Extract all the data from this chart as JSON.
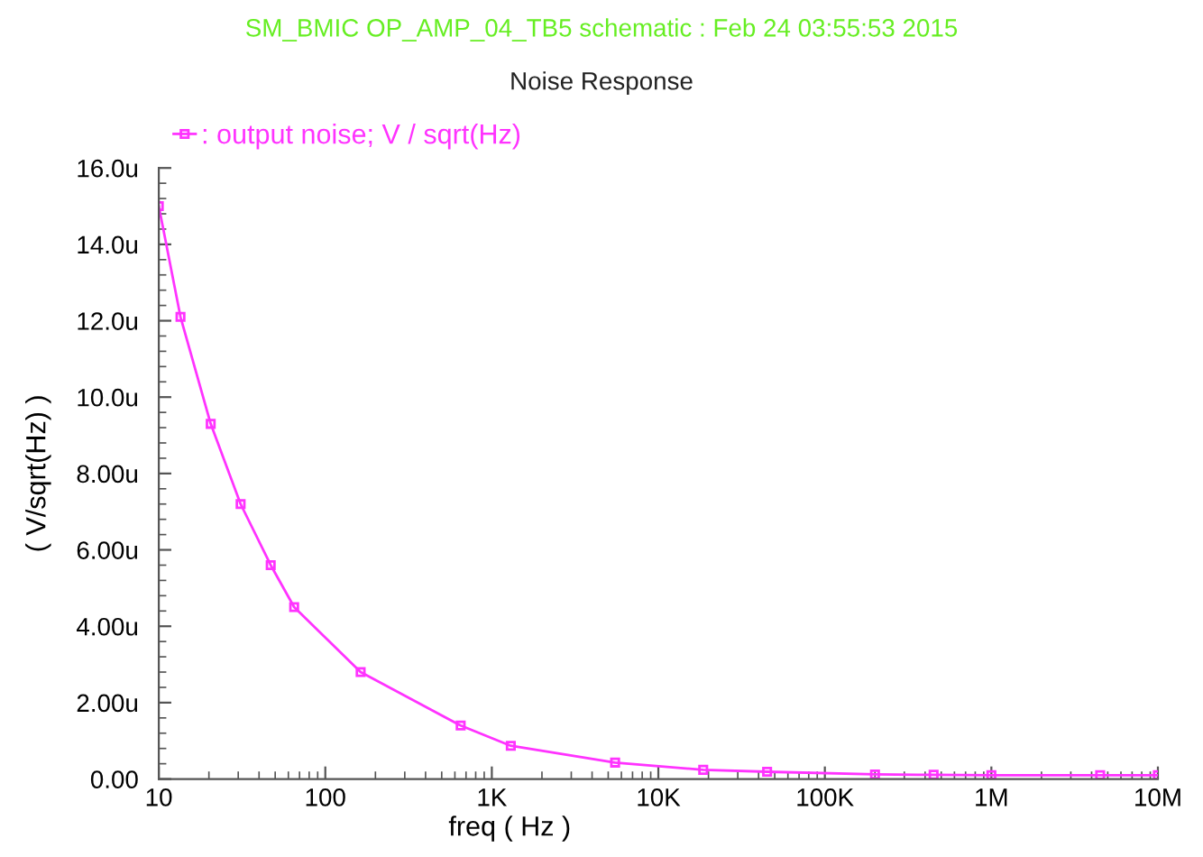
{
  "chart_data": {
    "type": "line",
    "title": "SM_BMIC OP_AMP_04_TB5 schematic : Feb 24 03:55:53 2015",
    "subtitle": "Noise Response",
    "xlabel": "freq ( Hz )",
    "ylabel": "( V/sqrt(Hz) )",
    "log": "x",
    "grid": false,
    "legend": "top left",
    "marker": "square",
    "line_style": "solid",
    "xlim": [
      10,
      10000000
    ],
    "xticks": [
      {
        "value": 10,
        "label": "10"
      },
      {
        "value": 100,
        "label": "100"
      },
      {
        "value": 1000,
        "label": "1K"
      },
      {
        "value": 10000,
        "label": "10K"
      },
      {
        "value": 100000,
        "label": "100K"
      },
      {
        "value": 1000000,
        "label": "1M"
      },
      {
        "value": 10000000,
        "label": "10M"
      }
    ],
    "ylim": [
      0,
      16
    ],
    "yticks": [
      {
        "value": 0,
        "label": "0.00"
      },
      {
        "value": 2,
        "label": "2.00u"
      },
      {
        "value": 4,
        "label": "4.00u"
      },
      {
        "value": 6,
        "label": "6.00u"
      },
      {
        "value": 8,
        "label": "8.00u"
      },
      {
        "value": 10,
        "label": "10.0u"
      },
      {
        "value": 12,
        "label": "12.0u"
      },
      {
        "value": 14,
        "label": "14.0u"
      },
      {
        "value": 16,
        "label": "16.0u"
      }
    ],
    "series": [
      {
        "name": ": output noise; V / sqrt(Hz)",
        "color": "#ff33ff",
        "x": [
          10,
          13.5,
          20.5,
          31,
          47,
          65,
          163,
          650,
          1300,
          5500,
          18600,
          45000,
          200000,
          450000,
          1000000,
          4500000,
          10000000
        ],
        "values": [
          15.0,
          12.1,
          9.3,
          7.2,
          5.6,
          4.5,
          2.8,
          1.4,
          0.87,
          0.43,
          0.24,
          0.19,
          0.12,
          0.11,
          0.1,
          0.1,
          0.1
        ]
      }
    ]
  }
}
